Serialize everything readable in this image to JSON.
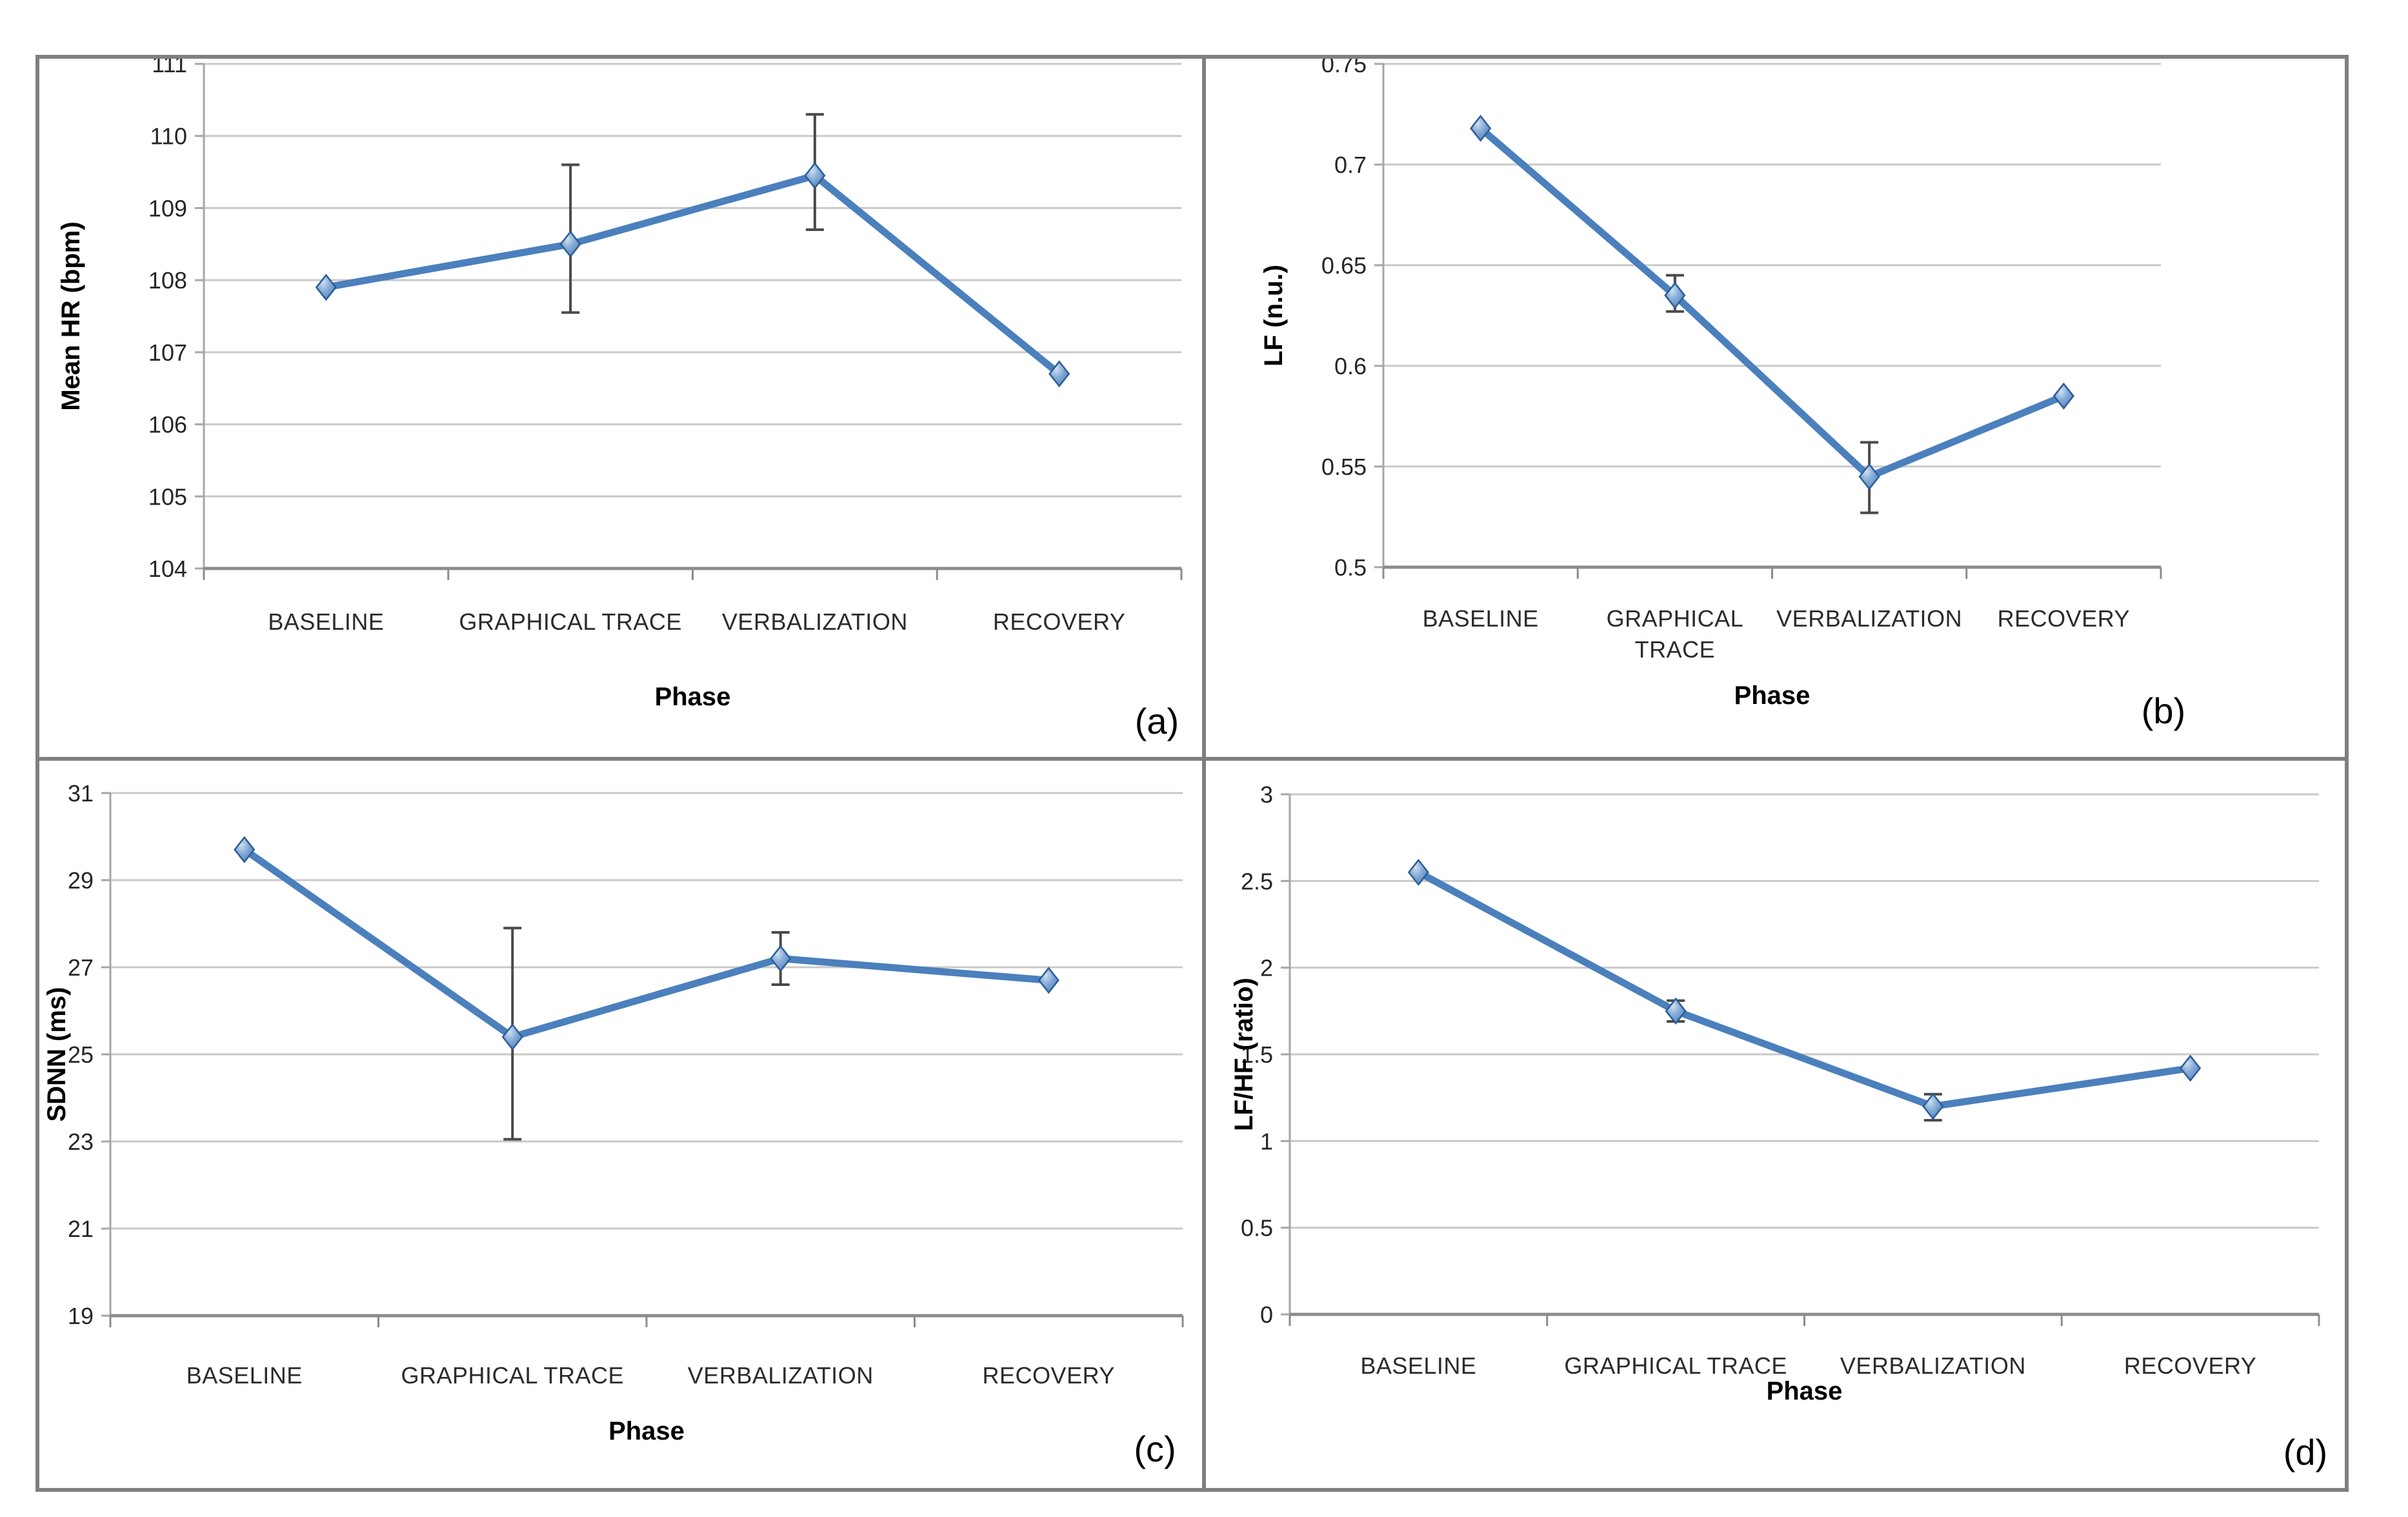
{
  "figure": {
    "x_axis_title": "Phase",
    "panel_letters": [
      "(a)",
      "(b)",
      "(c)",
      "(d)"
    ]
  },
  "styles": {
    "line_color": "#4b80bd",
    "marker_fill_center": "#cfe0f1",
    "marker_fill_mid": "#86acd8",
    "marker_fill_edge": "#4f81bd",
    "marker_stroke": "#2d5c94",
    "error_bar_color": "#4a4a4a",
    "gridline_color": "#c9c9c9",
    "y_axis_color": "#a6a6a6",
    "x_axis_color": "#8c8c8c",
    "tick_text_color": "#262626",
    "category_text_color": "#2b2b2b",
    "title_text_color": "#000000",
    "panel_border_color": "#7f7f7f"
  },
  "chart_data": [
    {
      "type": "line",
      "panel_label": "(a)",
      "ylabel": "Mean HR (bpm)",
      "xlabel": "Phase",
      "categories": [
        "BASELINE",
        "GRAPHICAL TRACE",
        "VERBALIZATION",
        "RECOVERY"
      ],
      "values": [
        107.9,
        108.5,
        109.45,
        106.7
      ],
      "error_bars": [
        null,
        [
          107.55,
          109.6
        ],
        [
          108.7,
          110.3
        ],
        null
      ],
      "y_min": 104,
      "y_max": 111,
      "y_ticks": [
        111,
        110,
        109,
        108,
        107,
        106,
        105,
        104
      ],
      "y_tick_labels": [
        "111",
        "110",
        "109",
        "108",
        "107",
        "106",
        "105",
        "104"
      ],
      "grid": true,
      "legend": "none"
    },
    {
      "type": "line",
      "panel_label": "(b)",
      "ylabel": "LF (n.u.)",
      "xlabel": "Phase",
      "categories": [
        "BASELINE",
        "GRAPHICAL\nTRACE",
        "VERBALIZATION",
        "RECOVERY"
      ],
      "values": [
        0.718,
        0.635,
        0.545,
        0.585
      ],
      "error_bars": [
        null,
        [
          0.627,
          0.645
        ],
        [
          0.527,
          0.562
        ],
        null
      ],
      "y_min": 0.5,
      "y_max": 0.75,
      "y_ticks": [
        0.75,
        0.7,
        0.65,
        0.6,
        0.55,
        0.5
      ],
      "y_tick_labels": [
        "0.75",
        "0.7",
        "0.65",
        "0.6",
        "0.55",
        "0.5"
      ],
      "grid": true,
      "legend": "none"
    },
    {
      "type": "line",
      "panel_label": "(c)",
      "ylabel": "SDNN (ms)",
      "xlabel": "Phase",
      "categories": [
        "BASELINE",
        "GRAPHICAL TRACE",
        "VERBALIZATION",
        "RECOVERY"
      ],
      "values": [
        29.7,
        25.4,
        27.2,
        26.7
      ],
      "error_bars": [
        null,
        [
          23.05,
          27.9
        ],
        [
          26.6,
          27.8
        ],
        null
      ],
      "y_min": 19,
      "y_max": 31,
      "y_ticks": [
        31,
        29,
        27,
        25,
        23,
        21,
        19
      ],
      "y_tick_labels": [
        "31",
        "29",
        "27",
        "25",
        "23",
        "21",
        "19"
      ],
      "grid": true,
      "legend": "none"
    },
    {
      "type": "line",
      "panel_label": "(d)",
      "ylabel": "LF/HF (ratio)",
      "xlabel": "Phase",
      "categories": [
        "BASELINE",
        "GRAPHICAL TRACE",
        "VERBALIZATION",
        "RECOVERY"
      ],
      "values": [
        2.55,
        1.75,
        1.2,
        1.42
      ],
      "error_bars": [
        null,
        [
          1.69,
          1.81
        ],
        [
          1.12,
          1.27
        ],
        null
      ],
      "y_min": 0,
      "y_max": 3,
      "y_ticks": [
        3,
        2.5,
        2,
        1.5,
        1,
        0.5,
        0
      ],
      "y_tick_labels": [
        "3",
        "2.5",
        "2",
        "1.5",
        "1",
        "0.5",
        "0"
      ],
      "grid": true,
      "legend": "none"
    }
  ]
}
